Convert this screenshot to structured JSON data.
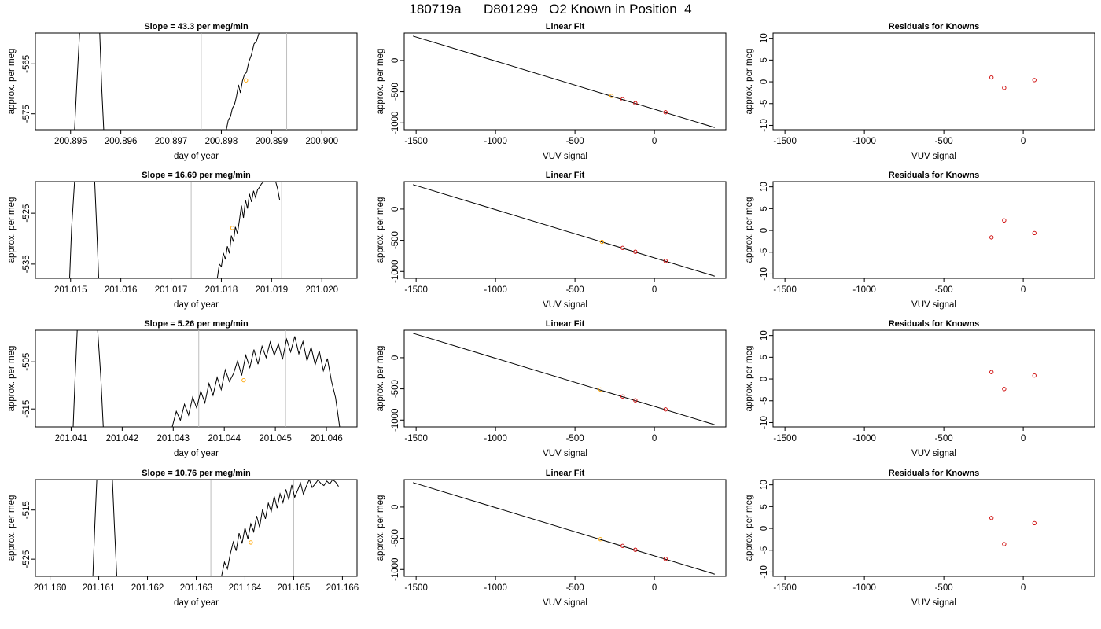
{
  "main_title": "180719a      D801299   O2 Known in Position  4",
  "colors": {
    "line": "#000000",
    "vline": "#bebebe",
    "unknown_point": "#ffa500",
    "known_point": "#cd0000",
    "axis": "#000000"
  },
  "chart_data": [
    {
      "type": "line",
      "row": 0,
      "col": 0,
      "title": "Slope =  43.3  per meg/min",
      "xlabel": "day of year",
      "ylabel": "approx. per meg",
      "xlim": [
        200.8943,
        200.9007
      ],
      "ylim": [
        -578.2,
        -558.8
      ],
      "xticks": [
        200.895,
        200.896,
        200.897,
        200.898,
        200.899,
        200.9
      ],
      "xtick_labels": [
        "200.895",
        "200.896",
        "200.897",
        "200.898",
        "200.899",
        "200.900"
      ],
      "yticks": [
        -565,
        -575
      ],
      "ytick_labels": [
        "-565",
        "-575"
      ],
      "vlines": [
        200.8976,
        200.8993
      ],
      "series": [
        {
          "x": [
            200.89508,
            200.89512,
            200.89518
          ],
          "y": [
            -578.2,
            -570,
            -558.8
          ]
        },
        {
          "x": [
            200.89558,
            200.89562,
            200.89566
          ],
          "y": [
            -558.8,
            -570,
            -578.2
          ]
        },
        {
          "x": [
            200.8981,
            200.89814,
            200.89818,
            200.89822,
            200.89826,
            200.8983,
            200.89834,
            200.89838,
            200.89842,
            200.89846,
            200.8985,
            200.89855,
            200.8986,
            200.89865,
            200.8987,
            200.89875
          ],
          "y": [
            -578.2,
            -576.2,
            -575.6,
            -573.9,
            -573.2,
            -571.6,
            -569.2,
            -570.8,
            -568.4,
            -567.1,
            -566.7,
            -564.5,
            -563.1,
            -561,
            -560.4,
            -558.8
          ]
        }
      ],
      "points": [
        {
          "x": 200.89849,
          "y": -568.3,
          "kind": "unknown"
        }
      ]
    },
    {
      "type": "line",
      "row": 0,
      "col": 1,
      "title": "Linear Fit",
      "xlabel": "VUV signal",
      "ylabel": "approx. per meg",
      "xlim": [
        -1575,
        450
      ],
      "ylim": [
        -1110,
        440
      ],
      "xticks": [
        -1500,
        -1000,
        -500,
        0
      ],
      "xtick_labels": [
        "-1500",
        "-1000",
        "-500",
        "0"
      ],
      "yticks": [
        0,
        -500,
        -1000
      ],
      "ytick_labels": [
        "0",
        "-500",
        "-1000"
      ],
      "fit_line": {
        "x": [
          -1520,
          380
        ],
        "y": [
          392,
          -1075
        ]
      },
      "points": [
        {
          "x": -270,
          "y": -568,
          "kind": "unknown"
        },
        {
          "x": -200,
          "y": -622,
          "kind": "known"
        },
        {
          "x": -120,
          "y": -684,
          "kind": "known"
        },
        {
          "x": 70,
          "y": -830,
          "kind": "known"
        }
      ]
    },
    {
      "type": "scatter",
      "row": 0,
      "col": 2,
      "title": "Residuals for Knowns",
      "xlabel": "VUV signal",
      "ylabel": "approx. per meg",
      "xlim": [
        -1575,
        450
      ],
      "ylim": [
        -11,
        11.2
      ],
      "xticks": [
        -1500,
        -1000,
        -500,
        0
      ],
      "xtick_labels": [
        "-1500",
        "-1000",
        "-500",
        "0"
      ],
      "yticks": [
        10,
        5,
        0,
        -5,
        -10
      ],
      "ytick_labels": [
        "10",
        "5",
        "0",
        "-5",
        "-10"
      ],
      "points": [
        {
          "x": -200,
          "y": 1,
          "kind": "known"
        },
        {
          "x": -120,
          "y": -1.4,
          "kind": "known"
        },
        {
          "x": 70,
          "y": 0.4,
          "kind": "known"
        }
      ]
    },
    {
      "type": "line",
      "row": 1,
      "col": 0,
      "title": "Slope =  16.69  per meg/min",
      "xlabel": "day of year",
      "ylabel": "approx. per meg",
      "xlim": [
        201.0143,
        201.0207
      ],
      "ylim": [
        -537.8,
        -518.8
      ],
      "xticks": [
        201.015,
        201.016,
        201.017,
        201.018,
        201.019,
        201.02
      ],
      "xtick_labels": [
        "201.015",
        "201.016",
        "201.017",
        "201.018",
        "201.019",
        "201.020"
      ],
      "yticks": [
        -525,
        -535
      ],
      "ytick_labels": [
        "-525",
        "-535"
      ],
      "vlines": [
        201.0174,
        201.0192
      ],
      "series": [
        {
          "x": [
            201.01498,
            201.01502,
            201.01508
          ],
          "y": [
            -537.8,
            -528,
            -518.8
          ]
        },
        {
          "x": [
            201.01548,
            201.01552,
            201.01556
          ],
          "y": [
            -518.8,
            -528,
            -537.8
          ]
        },
        {
          "x": [
            201.01792,
            201.01796,
            201.018,
            201.01804,
            201.01808,
            201.01812,
            201.01816,
            201.0182,
            201.01824,
            201.01828,
            201.01832,
            201.01836,
            201.0184,
            201.01844,
            201.01848,
            201.01852,
            201.01856,
            201.0186,
            201.01864,
            201.01868,
            201.01872,
            201.01876,
            201.0188,
            201.01885
          ],
          "y": [
            -537.8,
            -535,
            -535.5,
            -532.8,
            -534.1,
            -531.5,
            -532.9,
            -529.4,
            -530.6,
            -527.7,
            -529,
            -526.3,
            -523.5,
            -525.9,
            -522.4,
            -524.1,
            -521.2,
            -522.8,
            -520.6,
            -521.9,
            -520.4,
            -519.9,
            -519.2,
            -518.8
          ]
        },
        {
          "x": [
            201.01908,
            201.01912,
            201.01916
          ],
          "y": [
            -518.8,
            -520.2,
            -522.4
          ]
        }
      ],
      "points": [
        {
          "x": 201.01822,
          "y": -527.9,
          "kind": "unknown"
        }
      ]
    },
    {
      "type": "line",
      "row": 1,
      "col": 1,
      "title": "Linear Fit",
      "xlabel": "VUV signal",
      "ylabel": "approx. per meg",
      "xlim": [
        -1575,
        450
      ],
      "ylim": [
        -1110,
        440
      ],
      "xticks": [
        -1500,
        -1000,
        -500,
        0
      ],
      "xtick_labels": [
        "-1500",
        "-1000",
        "-500",
        "0"
      ],
      "yticks": [
        0,
        -500,
        -1000
      ],
      "ytick_labels": [
        "0",
        "-500",
        "-1000"
      ],
      "fit_line": {
        "x": [
          -1520,
          380
        ],
        "y": [
          392,
          -1075
        ]
      },
      "points": [
        {
          "x": -330,
          "y": -525,
          "kind": "unknown"
        },
        {
          "x": -200,
          "y": -622,
          "kind": "known"
        },
        {
          "x": -120,
          "y": -684,
          "kind": "known"
        },
        {
          "x": 70,
          "y": -830,
          "kind": "known"
        }
      ]
    },
    {
      "type": "scatter",
      "row": 1,
      "col": 2,
      "title": "Residuals for Knowns",
      "xlabel": "VUV signal",
      "ylabel": "approx. per meg",
      "xlim": [
        -1575,
        450
      ],
      "ylim": [
        -11,
        11.2
      ],
      "xticks": [
        -1500,
        -1000,
        -500,
        0
      ],
      "xtick_labels": [
        "-1500",
        "-1000",
        "-500",
        "0"
      ],
      "yticks": [
        10,
        5,
        0,
        -5,
        -10
      ],
      "ytick_labels": [
        "10",
        "5",
        "0",
        "-5",
        "-10"
      ],
      "points": [
        {
          "x": -200,
          "y": -1.6,
          "kind": "known"
        },
        {
          "x": -120,
          "y": 2.3,
          "kind": "known"
        },
        {
          "x": 70,
          "y": -0.6,
          "kind": "known"
        }
      ]
    },
    {
      "type": "line",
      "row": 2,
      "col": 0,
      "title": "Slope =  5.26  per meg/min",
      "xlabel": "day of year",
      "ylabel": "approx. per meg",
      "xlim": [
        201.0403,
        201.0466
      ],
      "ylim": [
        -518.8,
        -498.3
      ],
      "xticks": [
        201.041,
        201.042,
        201.043,
        201.044,
        201.045,
        201.046
      ],
      "xtick_labels": [
        "201.041",
        "201.042",
        "201.043",
        "201.044",
        "201.045",
        "201.046"
      ],
      "yticks": [
        -505,
        -515
      ],
      "ytick_labels": [
        "-505",
        "-515"
      ],
      "vlines": [
        201.0435,
        201.0452
      ],
      "series": [
        {
          "x": [
            201.04104,
            201.04108,
            201.04112
          ],
          "y": [
            -518.8,
            -508,
            -498.3
          ]
        },
        {
          "x": [
            201.04152,
            201.04158,
            201.04163
          ],
          "y": [
            -498.3,
            -508,
            -518.8
          ]
        },
        {
          "x": [
            201.04298,
            201.04306,
            201.04314,
            201.04322,
            201.0433,
            201.04338,
            201.04346,
            201.04354,
            201.04362,
            201.0437,
            201.04378,
            201.04386,
            201.04394,
            201.04402,
            201.0441,
            201.04418,
            201.04426,
            201.04434,
            201.04442,
            201.0445,
            201.04458,
            201.04466,
            201.04474,
            201.04482,
            201.0449,
            201.04498,
            201.04506,
            201.04514,
            201.04522,
            201.0453,
            201.04538,
            201.04546,
            201.04554,
            201.04562,
            201.0457,
            201.04578,
            201.04586,
            201.04594,
            201.04602,
            201.0461,
            201.04618,
            201.04626
          ],
          "y": [
            -518.8,
            -515.5,
            -517.4,
            -514,
            -516.3,
            -512.5,
            -514.8,
            -511.2,
            -513.7,
            -509.6,
            -512.1,
            -508.3,
            -510.9,
            -506.7,
            -509.2,
            -507.5,
            -504.8,
            -507.9,
            -503.6,
            -506.2,
            -502.4,
            -505.5,
            -501.7,
            -504.1,
            -500.8,
            -503.6,
            -501.2,
            -504.5,
            -500.2,
            -502.9,
            -499.6,
            -503.3,
            -500.7,
            -504.8,
            -501.9,
            -505.6,
            -502.7,
            -506.9,
            -504.3,
            -509.1,
            -512.6,
            -518.8
          ]
        }
      ],
      "points": [
        {
          "x": 201.04438,
          "y": -508.9,
          "kind": "unknown"
        }
      ]
    },
    {
      "type": "line",
      "row": 2,
      "col": 1,
      "title": "Linear Fit",
      "xlabel": "VUV signal",
      "ylabel": "approx. per meg",
      "xlim": [
        -1575,
        450
      ],
      "ylim": [
        -1110,
        440
      ],
      "xticks": [
        -1500,
        -1000,
        -500,
        0
      ],
      "xtick_labels": [
        "-1500",
        "-1000",
        "-500",
        "0"
      ],
      "yticks": [
        0,
        -500,
        -1000
      ],
      "ytick_labels": [
        "0",
        "-500",
        "-1000"
      ],
      "fit_line": {
        "x": [
          -1520,
          380
        ],
        "y": [
          392,
          -1075
        ]
      },
      "points": [
        {
          "x": -340,
          "y": -510,
          "kind": "unknown"
        },
        {
          "x": -200,
          "y": -622,
          "kind": "known"
        },
        {
          "x": -120,
          "y": -684,
          "kind": "known"
        },
        {
          "x": 70,
          "y": -830,
          "kind": "known"
        }
      ]
    },
    {
      "type": "scatter",
      "row": 2,
      "col": 2,
      "title": "Residuals for Knowns",
      "xlabel": "VUV signal",
      "ylabel": "approx. per meg",
      "xlim": [
        -1575,
        450
      ],
      "ylim": [
        -11,
        11.2
      ],
      "xticks": [
        -1500,
        -1000,
        -500,
        0
      ],
      "xtick_labels": [
        "-1500",
        "-1000",
        "-500",
        "0"
      ],
      "yticks": [
        10,
        5,
        0,
        -5,
        -10
      ],
      "ytick_labels": [
        "10",
        "5",
        "0",
        "-5",
        "-10"
      ],
      "points": [
        {
          "x": -200,
          "y": 1.6,
          "kind": "known"
        },
        {
          "x": -120,
          "y": -2.3,
          "kind": "known"
        },
        {
          "x": 70,
          "y": 0.8,
          "kind": "known"
        }
      ]
    },
    {
      "type": "line",
      "row": 3,
      "col": 0,
      "title": "Slope =  10.76  per meg/min",
      "xlabel": "day of year",
      "ylabel": "approx. per meg",
      "xlim": [
        201.1597,
        201.1663
      ],
      "ylim": [
        -528.5,
        -508.8
      ],
      "xticks": [
        201.16,
        201.161,
        201.162,
        201.163,
        201.164,
        201.165,
        201.166
      ],
      "xtick_labels": [
        "201.160",
        "201.161",
        "201.162",
        "201.163",
        "201.164",
        "201.165",
        "201.166"
      ],
      "yticks": [
        -515,
        -525
      ],
      "ytick_labels": [
        "-515",
        "-525"
      ],
      "vlines": [
        201.1633,
        201.165
      ],
      "series": [
        {
          "x": [
            201.16088,
            201.16092,
            201.16096
          ],
          "y": [
            -528.5,
            -518,
            -508.8
          ]
        },
        {
          "x": [
            201.16128,
            201.16132,
            201.16137
          ],
          "y": [
            -508.8,
            -518,
            -528.5
          ]
        },
        {
          "x": [
            201.16352,
            201.16358,
            201.16364,
            201.1637,
            201.16376,
            201.16382,
            201.16388,
            201.16394,
            201.164,
            201.16406,
            201.16412,
            201.16418,
            201.16424,
            201.1643,
            201.16436,
            201.16442,
            201.16448,
            201.16454,
            201.1646,
            201.16466,
            201.16472,
            201.16478,
            201.16484,
            201.1649,
            201.16496,
            201.16502,
            201.16508,
            201.16514,
            201.1652,
            201.16526,
            201.16532,
            201.16538,
            201.16544,
            201.1655,
            201.16556,
            201.16562,
            201.16568,
            201.16574,
            201.1658,
            201.16586,
            201.16592
          ],
          "y": [
            -528.5,
            -525.6,
            -527,
            -523.9,
            -521.5,
            -523.3,
            -519.7,
            -521.8,
            -518.6,
            -520.9,
            -517.8,
            -519.4,
            -516.2,
            -518.5,
            -514.9,
            -516.8,
            -513.6,
            -515.3,
            -512.2,
            -514.6,
            -511.7,
            -513.5,
            -510.8,
            -512.9,
            -509.9,
            -512.4,
            -511,
            -509.5,
            -511.8,
            -510.1,
            -508.8,
            -510.4,
            -509.7,
            -508.9,
            -509.6,
            -510,
            -509.1,
            -509.7,
            -508.8,
            -509.3,
            -510.2
          ]
        }
      ],
      "points": [
        {
          "x": 201.16412,
          "y": -521.6,
          "kind": "unknown"
        }
      ]
    },
    {
      "type": "line",
      "row": 3,
      "col": 1,
      "title": "Linear Fit",
      "xlabel": "VUV signal",
      "ylabel": "approx. per meg",
      "xlim": [
        -1575,
        450
      ],
      "ylim": [
        -1110,
        440
      ],
      "xticks": [
        -1500,
        -1000,
        -500,
        0
      ],
      "xtick_labels": [
        "-1500",
        "-1000",
        "-500",
        "0"
      ],
      "yticks": [
        0,
        -500,
        -1000
      ],
      "ytick_labels": [
        "0",
        "-500",
        "-1000"
      ],
      "fit_line": {
        "x": [
          -1520,
          380
        ],
        "y": [
          392,
          -1075
        ]
      },
      "points": [
        {
          "x": -340,
          "y": -515,
          "kind": "unknown"
        },
        {
          "x": -200,
          "y": -622,
          "kind": "known"
        },
        {
          "x": -120,
          "y": -684,
          "kind": "known"
        },
        {
          "x": 70,
          "y": -830,
          "kind": "known"
        }
      ]
    },
    {
      "type": "scatter",
      "row": 3,
      "col": 2,
      "title": "Residuals for Knowns",
      "xlabel": "VUV signal",
      "ylabel": "approx. per meg",
      "xlim": [
        -1575,
        450
      ],
      "ylim": [
        -11,
        11.2
      ],
      "xticks": [
        -1500,
        -1000,
        -500,
        0
      ],
      "xtick_labels": [
        "-1500",
        "-1000",
        "-500",
        "0"
      ],
      "yticks": [
        10,
        5,
        0,
        -5,
        -10
      ],
      "ytick_labels": [
        "10",
        "5",
        "0",
        "-5",
        "-10"
      ],
      "points": [
        {
          "x": -200,
          "y": 2.4,
          "kind": "known"
        },
        {
          "x": -120,
          "y": -3.6,
          "kind": "known"
        },
        {
          "x": 70,
          "y": 1.2,
          "kind": "known"
        }
      ]
    }
  ]
}
